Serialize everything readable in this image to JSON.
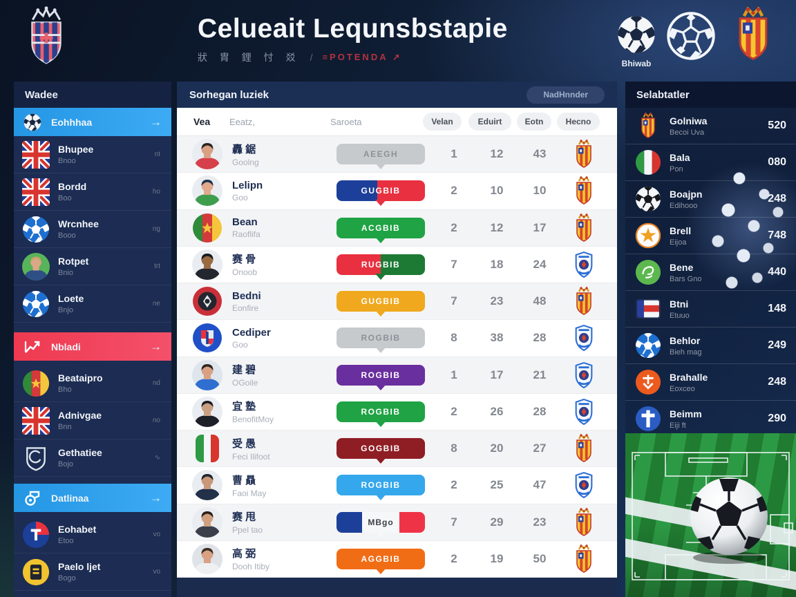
{
  "theme": {
    "accent_blue": "#2b9fe8",
    "accent_red": "#f03e52",
    "header_navy": "#1b2f55",
    "panel_white": "#ffffff"
  },
  "header": {
    "title": "Celueait Lequnsbstapie",
    "subtitle_cjk": "狀 胄 鋰 忖 㸚",
    "subtitle_sep": "/",
    "subtitle_accent": "≡POTENDA ↗",
    "ball_label": "Bhiwab"
  },
  "sidebar": {
    "title": "Wadee",
    "items": [
      {
        "kind": "active",
        "color": "blue",
        "icon": "ball-white",
        "label": "Eohhhaa",
        "arrow": "→"
      },
      {
        "kind": "item",
        "icon": "flag-uk",
        "label": "Bhupee",
        "sub": "Bnoo",
        "meta": "nt"
      },
      {
        "kind": "item",
        "icon": "flag-uk",
        "label": "Bordd",
        "sub": "Boo",
        "meta": "ho"
      },
      {
        "kind": "item",
        "icon": "ball-blue",
        "label": "Wrcnhee",
        "sub": "Booo",
        "meta": "ng"
      },
      {
        "kind": "item",
        "icon": "avatar-green",
        "label": "Rotpet",
        "sub": "Bnio",
        "meta": "trt"
      },
      {
        "kind": "item",
        "icon": "ball-blue",
        "label": "Loete",
        "sub": "Bnjo",
        "meta": "ne"
      },
      {
        "kind": "active",
        "color": "red",
        "icon": "chart",
        "label": "Nbladi",
        "arrow": "→"
      },
      {
        "kind": "item",
        "icon": "flag-cm",
        "label": "Beataipro",
        "sub": "Bho",
        "meta": "nd"
      },
      {
        "kind": "item",
        "icon": "flag-uk",
        "label": "Adnivgae",
        "sub": "Bnn",
        "meta": "no"
      },
      {
        "kind": "item",
        "icon": "crest-outline",
        "label": "Gethatiee",
        "sub": "Bojo",
        "meta": "∿"
      },
      {
        "kind": "active",
        "color": "blue2",
        "icon": "whistle",
        "label": "Datlinaa",
        "arrow": "→"
      },
      {
        "kind": "item",
        "icon": "circle-redblue",
        "label": "Eohabet",
        "sub": "Etoo",
        "meta": "vo"
      },
      {
        "kind": "item",
        "icon": "circle-yellow",
        "label": "Paelo ljet",
        "sub": "Bogo",
        "meta": "vo"
      }
    ]
  },
  "main": {
    "title": "Sorhegan luziek",
    "button": "NadHnnder",
    "columns": {
      "c1": "Vea",
      "c2": "Eeatz,",
      "c3": "Saroeta"
    },
    "pills": [
      "Velan",
      "Eduirt",
      "Eotn",
      "Hecno"
    ],
    "rows": [
      {
        "icon": "avatar-red",
        "name": "轟 鋸",
        "sub": "Goolng",
        "badge": "AEEGH",
        "badge_style": "gray",
        "v1": "1",
        "v2": "12",
        "v3": "43",
        "crest": "yellow"
      },
      {
        "icon": "avatar-greenshirt",
        "name": "Lelipn",
        "sub": "Goo",
        "badge": "GUGBIB",
        "badge_style": "split-navy-red",
        "v1": "2",
        "v2": "10",
        "v3": "10",
        "crest": "yellow"
      },
      {
        "icon": "flag-cm",
        "name": "Bean",
        "sub": "Raoflifa",
        "badge": "ACGBIB",
        "badge_style": "green",
        "v1": "2",
        "v2": "12",
        "v3": "17",
        "crest": "yellow"
      },
      {
        "icon": "avatar-dark",
        "name": "赛 骨",
        "sub": "Onoob",
        "badge": "RUGBIB",
        "badge_style": "split-red-green",
        "v1": "7",
        "v2": "18",
        "v3": "24",
        "crest": "blue"
      },
      {
        "icon": "crest-redblack",
        "name": "Bedni",
        "sub": "Eonfire",
        "badge": "GUGBIB",
        "badge_style": "amber",
        "v1": "7",
        "v2": "23",
        "v3": "48",
        "crest": "yellow"
      },
      {
        "icon": "circle-bluecrest",
        "name": "Cediper",
        "sub": "Goo",
        "badge": "ROGBIB",
        "badge_style": "gray",
        "v1": "8",
        "v2": "38",
        "v3": "28",
        "crest": "blue"
      },
      {
        "icon": "avatar-blue",
        "name": "建 碧",
        "sub": "OGoile",
        "badge": "ROGBIB",
        "badge_style": "purple",
        "v1": "1",
        "v2": "17",
        "v3": "21",
        "crest": "blue"
      },
      {
        "icon": "avatar-black",
        "name": "宜 塾",
        "sub": "BenofitMoy",
        "badge": "ROGBIB",
        "badge_style": "green",
        "v1": "2",
        "v2": "26",
        "v3": "28",
        "crest": "blue"
      },
      {
        "icon": "flag-it-rect",
        "name": "受 愚",
        "sub": "Feci Ilifoot",
        "badge": "GOGBIB",
        "badge_style": "darkred",
        "v1": "8",
        "v2": "20",
        "v3": "27",
        "crest": "yellow"
      },
      {
        "icon": "avatar-navy",
        "name": "曹 贔",
        "sub": "Faoi May",
        "badge": "ROGBIB",
        "badge_style": "lightblue",
        "v1": "2",
        "v2": "25",
        "v3": "47",
        "crest": "blue"
      },
      {
        "icon": "avatar-tan",
        "name": "赛 甩",
        "sub": "Ppel tao",
        "badge": "MBgo",
        "badge_style": "tri",
        "v1": "7",
        "v2": "29",
        "v3": "23",
        "crest": "yellow"
      },
      {
        "icon": "avatar-white",
        "name": "高 弼",
        "sub": "Dooh Itiby",
        "badge": "AGGBIB",
        "badge_style": "orange",
        "v1": "2",
        "v2": "19",
        "v3": "50",
        "crest": "yellow"
      }
    ]
  },
  "rightbar": {
    "title": "Selabtatler",
    "items": [
      {
        "icon": "crest-yellow",
        "name": "Golniwa",
        "sub": "Becoi Uva",
        "value": "520"
      },
      {
        "icon": "flag-it",
        "name": "Bala",
        "sub": "Pon",
        "value": "080"
      },
      {
        "icon": "ball-bw",
        "name": "Boajpn",
        "sub": "Edihooo",
        "value": "248"
      },
      {
        "icon": "circle-orange-star",
        "name": "Brell",
        "sub": "Eijoa",
        "value": "748"
      },
      {
        "icon": "circle-green",
        "name": "Bene",
        "sub": "Bars Gno",
        "value": "440"
      },
      {
        "icon": "flag-fr",
        "name": "Btni",
        "sub": "Etuuo",
        "value": "148"
      },
      {
        "icon": "ball-blue",
        "name": "Behlor",
        "sub": "Bieh mag",
        "value": "249"
      },
      {
        "icon": "circle-red",
        "name": "Brahalle",
        "sub": "Eoxceo",
        "value": "248"
      },
      {
        "icon": "circle-blue-cross",
        "name": "Beimm",
        "sub": "Eiji ft",
        "value": "290"
      }
    ]
  }
}
